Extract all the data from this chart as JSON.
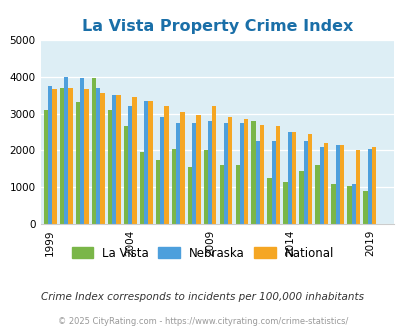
{
  "title": "La Vista Property Crime Index",
  "subtitle": "Crime Index corresponds to incidents per 100,000 inhabitants",
  "footer": "© 2025 CityRating.com - https://www.cityrating.com/crime-statistics/",
  "years": [
    1999,
    2000,
    2001,
    2002,
    2003,
    2004,
    2005,
    2006,
    2007,
    2008,
    2009,
    2010,
    2011,
    2012,
    2013,
    2014,
    2015,
    2016,
    2017,
    2018,
    2019
  ],
  "la_vista": [
    3100,
    3700,
    3300,
    3950,
    3100,
    2650,
    1950,
    1750,
    2050,
    1550,
    2000,
    1600,
    1600,
    2800,
    1250,
    1150,
    1450,
    1600,
    1100,
    1050,
    900
  ],
  "nebraska": [
    3750,
    4000,
    3950,
    3700,
    3500,
    3200,
    3350,
    2900,
    2750,
    2750,
    2800,
    2750,
    2750,
    2250,
    2250,
    2500,
    2250,
    2100,
    2150,
    1100,
    2050
  ],
  "national": [
    3650,
    3700,
    3650,
    3550,
    3500,
    3450,
    3350,
    3200,
    3050,
    2950,
    3200,
    2900,
    2850,
    2700,
    2650,
    2500,
    2450,
    2200,
    2150,
    2000,
    2100
  ],
  "color_lavista": "#7ab648",
  "color_nebraska": "#4d9fdc",
  "color_national": "#f5a623",
  "bg_color": "#ddeef5",
  "ylim": [
    0,
    5000
  ],
  "yticks": [
    0,
    1000,
    2000,
    3000,
    4000,
    5000
  ],
  "bar_width": 0.27,
  "title_color": "#1a6fa8",
  "subtitle_color": "#333333",
  "footer_color": "#999999",
  "xtick_years": [
    1999,
    2004,
    2009,
    2014,
    2019
  ]
}
